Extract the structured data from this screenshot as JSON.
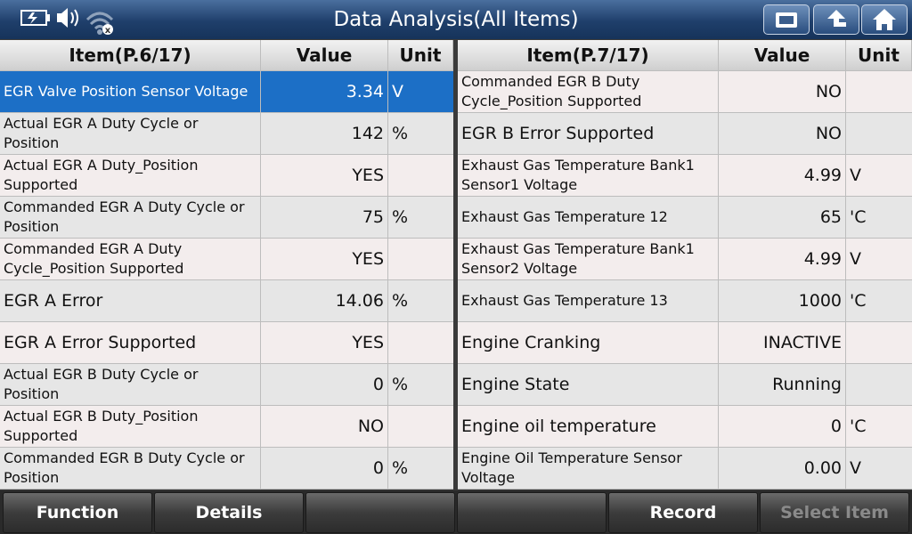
{
  "header": {
    "title": "Data Analysis(All Items)"
  },
  "left_table": {
    "columns": [
      "Item(P.6/17)",
      "Value",
      "Unit"
    ],
    "rows": [
      {
        "item": "EGR Valve Position Sensor Voltage",
        "value": "3.34",
        "unit": "V",
        "selected": true
      },
      {
        "item": "Actual EGR A Duty Cycle or Position",
        "value": "142",
        "unit": "%"
      },
      {
        "item": "Actual EGR A Duty_Position Supported",
        "value": "YES"
      },
      {
        "item": "Commanded EGR A Duty Cycle or Position",
        "value": "75",
        "unit": "%"
      },
      {
        "item": "Commanded EGR A Duty Cycle_Position Supported",
        "value": "YES"
      },
      {
        "item": "EGR A Error",
        "value": "14.06",
        "unit": "%"
      },
      {
        "item": "EGR A Error Supported",
        "value": "YES"
      },
      {
        "item": "Actual EGR B Duty Cycle or Position",
        "value": "0",
        "unit": "%"
      },
      {
        "item": "Actual EGR B Duty_Position Supported",
        "value": "NO"
      },
      {
        "item": "Commanded EGR B Duty Cycle or Position",
        "value": "0",
        "unit": "%"
      }
    ]
  },
  "right_table": {
    "columns": [
      "Item(P.7/17)",
      "Value",
      "Unit"
    ],
    "rows": [
      {
        "item": "Commanded EGR B Duty Cycle_Position Supported",
        "value": "NO"
      },
      {
        "item": "EGR B Error Supported",
        "value": "NO"
      },
      {
        "item": "Exhaust Gas Temperature Bank1 Sensor1 Voltage",
        "value": "4.99",
        "unit": "V"
      },
      {
        "item": "Exhaust Gas Temperature 12",
        "value": "65",
        "unit": "'C"
      },
      {
        "item": "Exhaust Gas Temperature Bank1 Sensor2 Voltage",
        "value": "4.99",
        "unit": "V"
      },
      {
        "item": "Exhaust Gas Temperature 13",
        "value": "1000",
        "unit": "'C"
      },
      {
        "item": "Engine Cranking",
        "value": "INACTIVE"
      },
      {
        "item": "Engine State",
        "value": "Running"
      },
      {
        "item": "Engine oil temperature",
        "value": "0",
        "unit": "'C"
      },
      {
        "item": "Engine Oil Temperature Sensor Voltage",
        "value": "0.00",
        "unit": "V"
      }
    ]
  },
  "buttons": [
    "Function",
    "Details",
    "Record",
    "Select Item"
  ]
}
